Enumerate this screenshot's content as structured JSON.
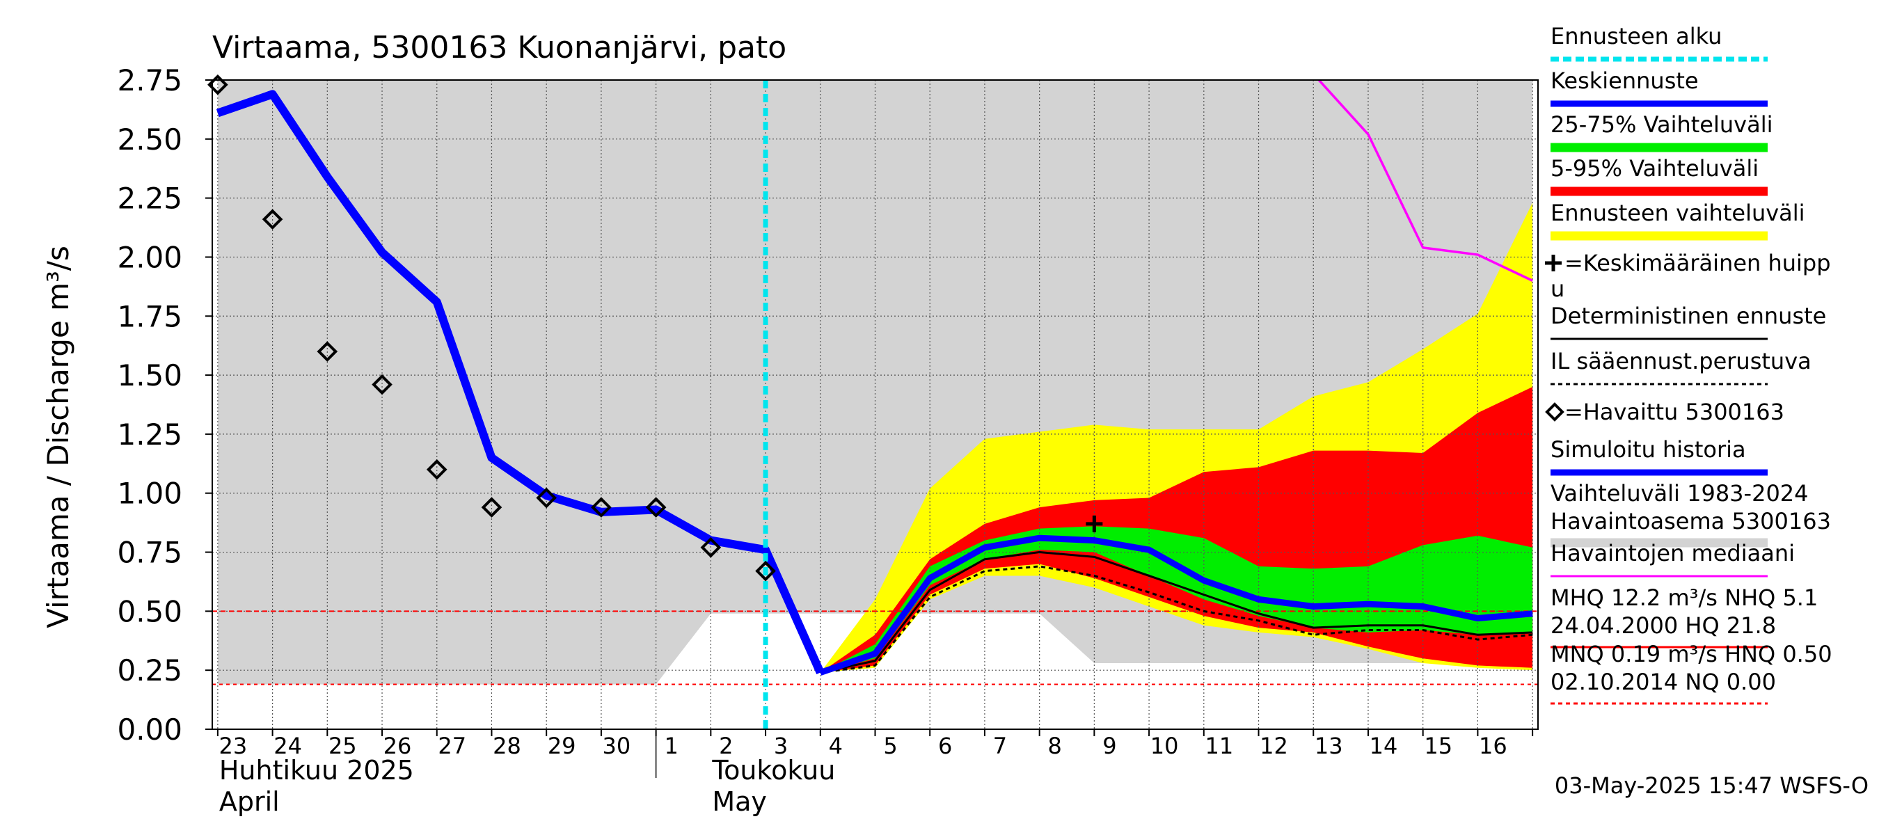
{
  "chart_data": {
    "type": "line",
    "title": "Virtaama, 5300163 Kuonanjärvi, pato",
    "ylabel": "Virtaama / Discharge   m³/s",
    "ylim": [
      0,
      2.75
    ],
    "yticks": [
      "0.00",
      "0.25",
      "0.50",
      "0.75",
      "1.00",
      "1.25",
      "1.50",
      "1.75",
      "2.00",
      "2.25",
      "2.50",
      "2.75"
    ],
    "xlim": [
      22.9,
      47.1
    ],
    "day_labels": [
      "23",
      "24",
      "25",
      "26",
      "27",
      "28",
      "29",
      "30",
      "1",
      "2",
      "3",
      "4",
      "5",
      "6",
      "7",
      "8",
      "9",
      "10",
      "11",
      "12",
      "13",
      "14",
      "15",
      "16"
    ],
    "month_labels": [
      {
        "fi": "Huhtikuu  2025",
        "en": "April",
        "x": 23
      },
      {
        "fi": "Toukokuu",
        "en": "May",
        "x": 32
      }
    ],
    "forecast_start_x": 33,
    "timestamp": "03-May-2025 15:47 WSFS-O",
    "colors": {
      "history": "#d3d3d3",
      "forecast_range": "#ffff00",
      "p5_95": "#ff0000",
      "p25_75": "#00ee00",
      "mean": "#0000ff",
      "deterministic": "#000000",
      "median": "#ff00ff",
      "forecast_start": "#00e5ee",
      "ref": "#ff0000"
    },
    "reference_lines": [
      0.5,
      0.19
    ],
    "history_band": {
      "x": [
        23,
        31,
        32,
        38,
        39,
        47
      ],
      "lo": [
        0.19,
        0.19,
        0.49,
        0.49,
        0.28,
        0.28
      ],
      "hi": [
        2.75,
        2.75,
        2.75,
        2.75,
        2.75,
        2.75
      ]
    },
    "bands": {
      "x": [
        34,
        35,
        36,
        37,
        38,
        39,
        40,
        41,
        42,
        43,
        44,
        45,
        46,
        47
      ],
      "range_lo": [
        0.24,
        0.26,
        0.55,
        0.65,
        0.65,
        0.6,
        0.52,
        0.44,
        0.41,
        0.39,
        0.34,
        0.28,
        0.26,
        0.25
      ],
      "range_hi": [
        0.24,
        0.55,
        1.02,
        1.23,
        1.26,
        1.29,
        1.27,
        1.27,
        1.27,
        1.41,
        1.47,
        1.61,
        1.76,
        2.23
      ],
      "p5_95_lo": [
        0.24,
        0.27,
        0.57,
        0.68,
        0.7,
        0.64,
        0.56,
        0.48,
        0.43,
        0.41,
        0.35,
        0.3,
        0.27,
        0.26
      ],
      "p5_95_hi": [
        0.24,
        0.4,
        0.72,
        0.87,
        0.94,
        0.97,
        0.98,
        1.09,
        1.11,
        1.18,
        1.18,
        1.17,
        1.34,
        1.45
      ],
      "p25_75_lo": [
        0.24,
        0.3,
        0.61,
        0.72,
        0.76,
        0.75,
        0.65,
        0.55,
        0.48,
        0.43,
        0.41,
        0.42,
        0.4,
        0.41
      ],
      "p25_75_hi": [
        0.24,
        0.36,
        0.69,
        0.8,
        0.85,
        0.86,
        0.85,
        0.81,
        0.69,
        0.68,
        0.69,
        0.78,
        0.82,
        0.77
      ]
    },
    "series": [
      {
        "name": "Simuloitu historia",
        "x": [
          23,
          24,
          25,
          26,
          27,
          28,
          29,
          30,
          31,
          32,
          33,
          34
        ],
        "values": [
          2.61,
          2.69,
          2.34,
          2.02,
          1.81,
          1.15,
          0.99,
          0.92,
          0.93,
          0.8,
          0.76,
          0.24
        ]
      },
      {
        "name": "Keskiennuste",
        "x": [
          34,
          35,
          36,
          37,
          38,
          39,
          40,
          41,
          42,
          43,
          44,
          45,
          46,
          47
        ],
        "values": [
          0.24,
          0.32,
          0.64,
          0.77,
          0.81,
          0.8,
          0.76,
          0.63,
          0.55,
          0.52,
          0.53,
          0.52,
          0.47,
          0.49
        ]
      },
      {
        "name": "Deterministinen ennuste",
        "x": [
          34,
          35,
          36,
          37,
          38,
          39,
          40,
          41,
          42,
          43,
          44,
          45,
          46,
          47
        ],
        "values": [
          0.24,
          0.29,
          0.59,
          0.72,
          0.75,
          0.73,
          0.65,
          0.57,
          0.49,
          0.43,
          0.44,
          0.44,
          0.4,
          0.41
        ]
      },
      {
        "name": "IL sääennust.perustuva",
        "x": [
          34,
          35,
          36,
          37,
          38,
          39,
          40,
          41,
          42,
          43,
          44,
          45,
          46,
          47
        ],
        "values": [
          0.24,
          0.27,
          0.56,
          0.67,
          0.69,
          0.65,
          0.58,
          0.5,
          0.46,
          0.4,
          0.42,
          0.42,
          0.38,
          0.4
        ]
      },
      {
        "name": "Havaintojen mediaani",
        "x": [
          43.1,
          44,
          45,
          46,
          47
        ],
        "values": [
          2.75,
          2.52,
          2.04,
          2.01,
          1.9
        ]
      }
    ],
    "observed": {
      "x": [
        23,
        24,
        25,
        26,
        27,
        28,
        29,
        30,
        31,
        32,
        33
      ],
      "values": [
        2.73,
        2.16,
        1.6,
        1.46,
        1.1,
        0.94,
        0.98,
        0.94,
        0.94,
        0.77,
        0.67
      ]
    },
    "mean_peak": {
      "x": 39,
      "value": 0.87
    },
    "legend": [
      {
        "label": "Ennusteen alku",
        "kind": "dashed",
        "color": "#00e5ee"
      },
      {
        "label": "Keskiennuste",
        "kind": "line",
        "color": "#0000ff"
      },
      {
        "label": "25-75% Vaihteluväli",
        "kind": "thick",
        "color": "#00ee00"
      },
      {
        "label": "5-95% Vaihteluväli",
        "kind": "thick",
        "color": "#ff0000"
      },
      {
        "label": "Ennusteen vaihteluväli",
        "kind": "thick",
        "color": "#ffff00"
      },
      {
        "label": "=Keskimääräinen huipp",
        "label2": "u",
        "kind": "plus",
        "color": "#000000"
      },
      {
        "label": "Deterministinen ennuste",
        "kind": "line",
        "color": "#000000"
      },
      {
        "label": "IL sääennust.perustuva",
        "kind": "dashed",
        "color": "#000000"
      },
      {
        "label": "=Havaittu 5300163",
        "kind": "diamond",
        "color": "#000000"
      },
      {
        "label": "Simuloitu historia",
        "kind": "line",
        "color": "#0000ff"
      },
      {
        "label": "Vaihteluväli 1983-2024",
        "label2": " Havaintoasema 5300163",
        "kind": "thick",
        "color": "#d3d3d3"
      },
      {
        "label": "Havaintojen mediaani",
        "kind": "line",
        "color": "#ff00ff"
      },
      {
        "label": "MHQ 12.2 m³/s NHQ  5.1",
        "label2": "24.04.2000 HQ 21.8",
        "kind": "line",
        "color": "#ff0000"
      },
      {
        "label": "MNQ 0.19 m³/s HNQ 0.50",
        "label2": "02.10.2014 NQ 0.00",
        "kind": "dashed",
        "color": "#ff0000"
      }
    ]
  }
}
